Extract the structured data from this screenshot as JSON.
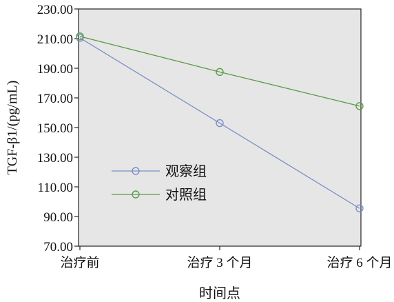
{
  "chart_data": {
    "type": "line",
    "xlabel": "时间点",
    "ylabel": "TGF-β1/(pg/mL)",
    "categories": [
      "治疗前",
      "治疗 3 个月",
      "治疗 6 个月"
    ],
    "ylim": [
      70,
      230
    ],
    "yticks": [
      "70.00",
      "90.00",
      "110.00",
      "130.00",
      "150.00",
      "170.00",
      "190.00",
      "210.00",
      "230.00"
    ],
    "grid": false,
    "legend_position": "left-center",
    "plot_background": "#e6e6e6",
    "series": [
      {
        "name": "观察组",
        "values": [
          210.5,
          153.0,
          95.5
        ],
        "color": "#7b8fc7"
      },
      {
        "name": "对照组",
        "values": [
          211.5,
          187.5,
          164.5
        ],
        "color": "#5e9a4a"
      }
    ]
  }
}
